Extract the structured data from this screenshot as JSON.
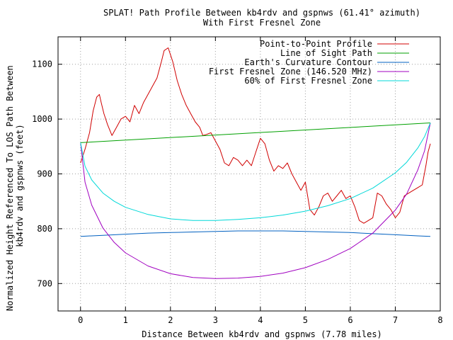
{
  "chart_data": {
    "type": "line",
    "title": "SPLAT! Path Profile Between kb4rdv and gspnws (61.41° azimuth)",
    "subtitle": "With First Fresnel Zone",
    "xlabel": "Distance Between kb4rdv and gspnws (7.78 miles)",
    "ylabel": "Normalized Height Referenced To LOS Path Between kb4rdv and gspnws (feet)",
    "ylabel_lines": [
      "Normalized Height Referenced To LOS Path Between",
      "kb4rdv and gspnws (feet)"
    ],
    "xlim": [
      -0.5,
      8
    ],
    "ylim": [
      650,
      1150
    ],
    "xticks": [
      0,
      1,
      2,
      3,
      4,
      5,
      6,
      7,
      8
    ],
    "yticks": [
      700,
      800,
      900,
      1000,
      1100
    ],
    "xtick_labels": [
      "0",
      "1",
      "2",
      "3",
      "4",
      "5",
      "6",
      "7",
      "8"
    ],
    "ytick_labels": [
      "700",
      "800",
      "900",
      "1000",
      "1100"
    ],
    "grid": true,
    "legend_position": "top-right",
    "series": [
      {
        "name": "Point-to-Point Profile",
        "color": "#d00000",
        "x": [
          0.0,
          0.1,
          0.2,
          0.28,
          0.36,
          0.42,
          0.46,
          0.52,
          0.6,
          0.7,
          0.8,
          0.9,
          1.0,
          1.1,
          1.2,
          1.3,
          1.4,
          1.5,
          1.6,
          1.7,
          1.8,
          1.86,
          1.95,
          2.05,
          2.15,
          2.25,
          2.35,
          2.45,
          2.55,
          2.65,
          2.72,
          2.8,
          2.9,
          3.0,
          3.1,
          3.2,
          3.3,
          3.4,
          3.5,
          3.6,
          3.7,
          3.8,
          3.9,
          4.0,
          4.1,
          4.2,
          4.3,
          4.4,
          4.5,
          4.6,
          4.7,
          4.8,
          4.9,
          5.0,
          5.05,
          5.1,
          5.2,
          5.3,
          5.4,
          5.5,
          5.6,
          5.7,
          5.8,
          5.9,
          6.0,
          6.1,
          6.2,
          6.3,
          6.4,
          6.5,
          6.6,
          6.7,
          6.8,
          6.9,
          7.0,
          7.1,
          7.2,
          7.3,
          7.4,
          7.5,
          7.6,
          7.68,
          7.73,
          7.78
        ],
        "y": [
          920,
          945,
          975,
          1015,
          1040,
          1045,
          1030,
          1010,
          990,
          970,
          985,
          1000,
          1005,
          995,
          1025,
          1010,
          1030,
          1045,
          1060,
          1075,
          1105,
          1125,
          1130,
          1105,
          1070,
          1045,
          1025,
          1010,
          995,
          985,
          970,
          972,
          975,
          960,
          945,
          920,
          915,
          930,
          925,
          915,
          925,
          915,
          940,
          965,
          955,
          925,
          905,
          915,
          910,
          920,
          900,
          885,
          870,
          885,
          860,
          835,
          825,
          840,
          860,
          865,
          850,
          860,
          870,
          855,
          860,
          840,
          815,
          810,
          815,
          820,
          865,
          860,
          845,
          835,
          820,
          830,
          860,
          865,
          870,
          875,
          880,
          915,
          940,
          955
        ]
      },
      {
        "name": "Line of Sight Path",
        "color": "#00a000",
        "x": [
          0,
          7.78
        ],
        "y": [
          957,
          993
        ]
      },
      {
        "name": "Earth's Curvature Contour",
        "color": "#0060c0",
        "x": [
          0,
          0.5,
          1,
          1.5,
          2,
          2.5,
          3,
          3.5,
          4,
          4.5,
          5,
          5.5,
          6,
          6.5,
          7,
          7.5,
          7.78
        ],
        "y": [
          786,
          788,
          790,
          792,
          793,
          794,
          795,
          796,
          796,
          796,
          795,
          794,
          793,
          791,
          789,
          787,
          786
        ]
      },
      {
        "name": "First Fresnel Zone (146.520 MHz)",
        "color": "#a000c0",
        "x": [
          0,
          0.1,
          0.25,
          0.5,
          0.75,
          1,
          1.5,
          2,
          2.5,
          3,
          3.5,
          4,
          4.5,
          5,
          5.5,
          6,
          6.5,
          7,
          7.25,
          7.5,
          7.65,
          7.78
        ],
        "y": [
          957,
          885,
          843,
          801,
          775,
          756,
          732,
          718,
          711,
          709,
          710,
          713,
          719,
          729,
          744,
          764,
          792,
          834,
          863,
          907,
          942,
          993
        ]
      },
      {
        "name": "60% of First Fresnel Zone",
        "color": "#00d8d8",
        "x": [
          0,
          0.1,
          0.25,
          0.5,
          0.75,
          1,
          1.5,
          2,
          2.5,
          3,
          3.5,
          4,
          4.5,
          5,
          5.5,
          6,
          6.5,
          7,
          7.25,
          7.5,
          7.65,
          7.78
        ],
        "y": [
          957,
          914,
          889,
          865,
          850,
          839,
          826,
          818,
          815,
          815,
          817,
          820,
          825,
          832,
          842,
          855,
          874,
          902,
          921,
          947,
          968,
          993
        ]
      }
    ]
  }
}
